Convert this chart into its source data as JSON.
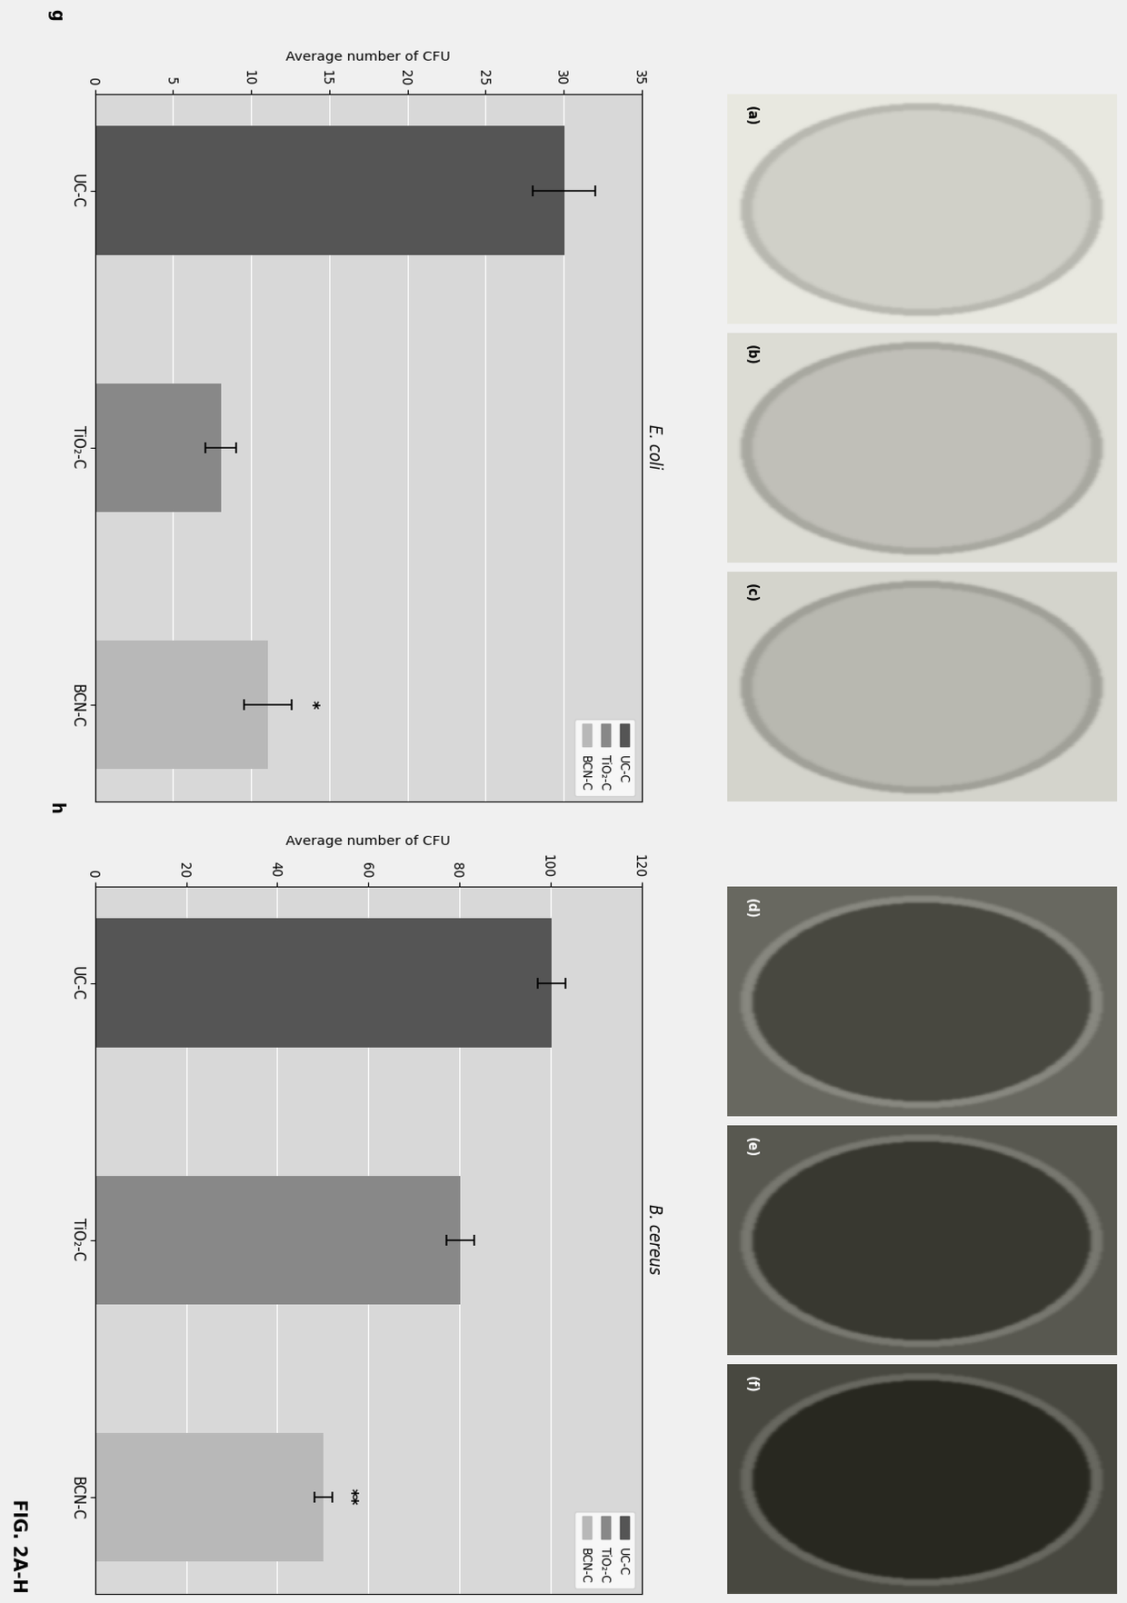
{
  "fig_title": "FIG. 2A-H",
  "chart_g": {
    "title": "E. coli",
    "label": "g",
    "categories": [
      "UC-C",
      "TiO₂-C",
      "BCN-C"
    ],
    "values": [
      30,
      8,
      11
    ],
    "errors": [
      2.0,
      1.0,
      1.5
    ],
    "colors": [
      "#555555",
      "#888888",
      "#b8b8b8"
    ],
    "ylabel": "Average number of CFU",
    "ylim": [
      0,
      35
    ],
    "yticks": [
      0,
      5,
      10,
      15,
      20,
      25,
      30,
      35
    ],
    "annotation": "*",
    "annotation_bar": 2
  },
  "chart_h": {
    "title": "B. cereus",
    "label": "h",
    "categories": [
      "UC-C",
      "TiO₂-C",
      "BCN-C"
    ],
    "values": [
      100,
      80,
      50
    ],
    "errors": [
      3.0,
      3.0,
      2.0
    ],
    "colors": [
      "#555555",
      "#888888",
      "#b8b8b8"
    ],
    "ylabel": "Average number of CFU",
    "ylim": [
      0,
      120
    ],
    "yticks": [
      0,
      20,
      40,
      60,
      80,
      100,
      120
    ],
    "annotation": "**",
    "annotation_bar": 2
  },
  "legend_labels": [
    "UC-C",
    "TiO₂-C",
    "BCN-C"
  ],
  "legend_colors": [
    "#555555",
    "#888888",
    "#b8b8b8"
  ],
  "chart_bg": "#d8d8d8",
  "fig_bg": "#f0f0f0",
  "bar_width": 0.5,
  "photos_left": {
    "labels": [
      "a",
      "b",
      "c"
    ],
    "dish_colors": [
      "#d0d0c8",
      "#c0bfb8",
      "#b8b8b0"
    ],
    "rim_colors": [
      "#b8b8b0",
      "#a8a8a0",
      "#a0a098"
    ],
    "bg_colors": [
      "#e8e8e0",
      "#dcdcd4",
      "#d4d4cc"
    ]
  },
  "photos_right": {
    "labels": [
      "d",
      "e",
      "f"
    ],
    "dish_colors": [
      "#484840",
      "#383830",
      "#282820"
    ],
    "rim_colors": [
      "#888880",
      "#787870",
      "#686860"
    ],
    "bg_colors": [
      "#686860",
      "#585850",
      "#484840"
    ]
  }
}
